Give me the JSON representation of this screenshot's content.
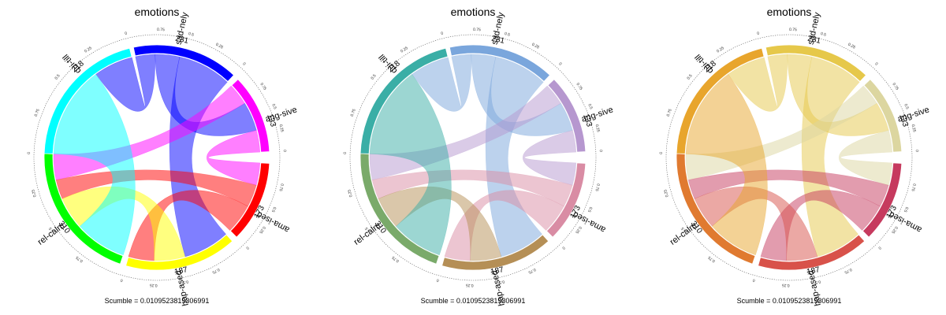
{
  "chart_data": [
    {
      "type": "chord",
      "title": "emotions",
      "caption": "Scumble = 0.0109523819306991",
      "palette": "bright",
      "sectors": [
        {
          "name": "sad-nely",
          "total": "231",
          "color": "#0000ff"
        },
        {
          "name": "ang-sive",
          "total": "133",
          "color": "#ff00ff"
        },
        {
          "name": "ama-ised",
          "total": "173",
          "color": "#ff0000"
        },
        {
          "name": "hap-ased",
          "total": "187",
          "color": "#ffff00"
        },
        {
          "name": "rel-calm",
          "total": "310",
          "color": "#00ff00"
        },
        {
          "name": "qui-till",
          "total": "218",
          "color": "#00ffff"
        }
      ],
      "scale_ticks": [
        "0",
        "0.25",
        "0.5",
        "0.75"
      ]
    },
    {
      "type": "chord",
      "title": "emotions",
      "caption": "Scumble = 0.0109523819306991",
      "palette": "pastel",
      "sectors": [
        {
          "name": "sad-nely",
          "total": "231",
          "color": "#7aa6dc"
        },
        {
          "name": "ang-sive",
          "total": "133",
          "color": "#b697cf"
        },
        {
          "name": "ama-ised",
          "total": "173",
          "color": "#d98ca4"
        },
        {
          "name": "hap-ased",
          "total": "187",
          "color": "#b58f56"
        },
        {
          "name": "rel-calm",
          "total": "310",
          "color": "#7aaa6a"
        },
        {
          "name": "qui-till",
          "total": "218",
          "color": "#3aaea6"
        }
      ],
      "scale_ticks": [
        "0",
        "0.25",
        "0.5",
        "0.75"
      ]
    },
    {
      "type": "chord",
      "title": "emotions",
      "caption": "Scumble = 0.0109523819306991",
      "palette": "warm",
      "sectors": [
        {
          "name": "sad-nely",
          "total": "231",
          "color": "#e6c84a"
        },
        {
          "name": "ang-sive",
          "total": "133",
          "color": "#dcd6a0"
        },
        {
          "name": "ama-ised",
          "total": "173",
          "color": "#c63a5e"
        },
        {
          "name": "hap-ased",
          "total": "187",
          "color": "#d8524a"
        },
        {
          "name": "rel-calm",
          "total": "310",
          "color": "#e07a30"
        },
        {
          "name": "qui-till",
          "total": "218",
          "color": "#e8a52c"
        }
      ],
      "scale_ticks": [
        "0",
        "0.25",
        "0.5",
        "0.75"
      ]
    }
  ]
}
